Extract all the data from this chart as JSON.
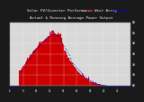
{
  "title1": "Solar PV/Inverter Performance West Array",
  "title2": "Actual & Running Average Power Output",
  "title_fontsize": 3.0,
  "bg_color": "#1a1a1a",
  "plot_bg_color": "#d8d8d8",
  "bar_color": "#cc0000",
  "bar_edge_color": "#cc0000",
  "avg_line_color": "#0000ff",
  "grid_color": "#ffffff",
  "ylim": [
    0,
    6
  ],
  "num_bars": 144,
  "legend_actual_color": "#cc0000",
  "legend_avg_color": "#0000ff",
  "title_color": "#ffffff",
  "tick_color": "#ffffff",
  "ytick_labels": [
    "0W",
    "1W",
    "2W",
    "3W",
    "4W",
    "5W",
    "6W"
  ],
  "ytick_vals": [
    0,
    1,
    2,
    3,
    4,
    5,
    6
  ]
}
